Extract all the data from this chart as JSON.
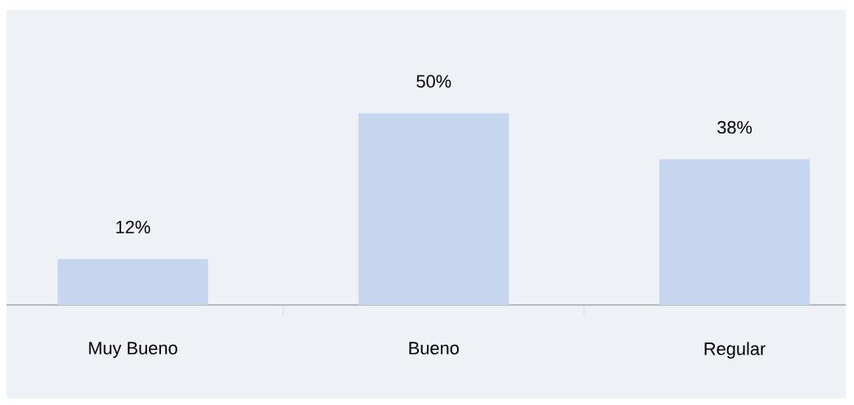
{
  "chart_data": {
    "type": "bar",
    "categories": [
      "Muy Bueno",
      "Bueno",
      "Regular"
    ],
    "values": [
      12,
      50,
      38
    ],
    "value_labels": [
      "12%",
      "50%",
      "38%"
    ],
    "color": "#c5d6ee",
    "tick_labels": "x"
  }
}
